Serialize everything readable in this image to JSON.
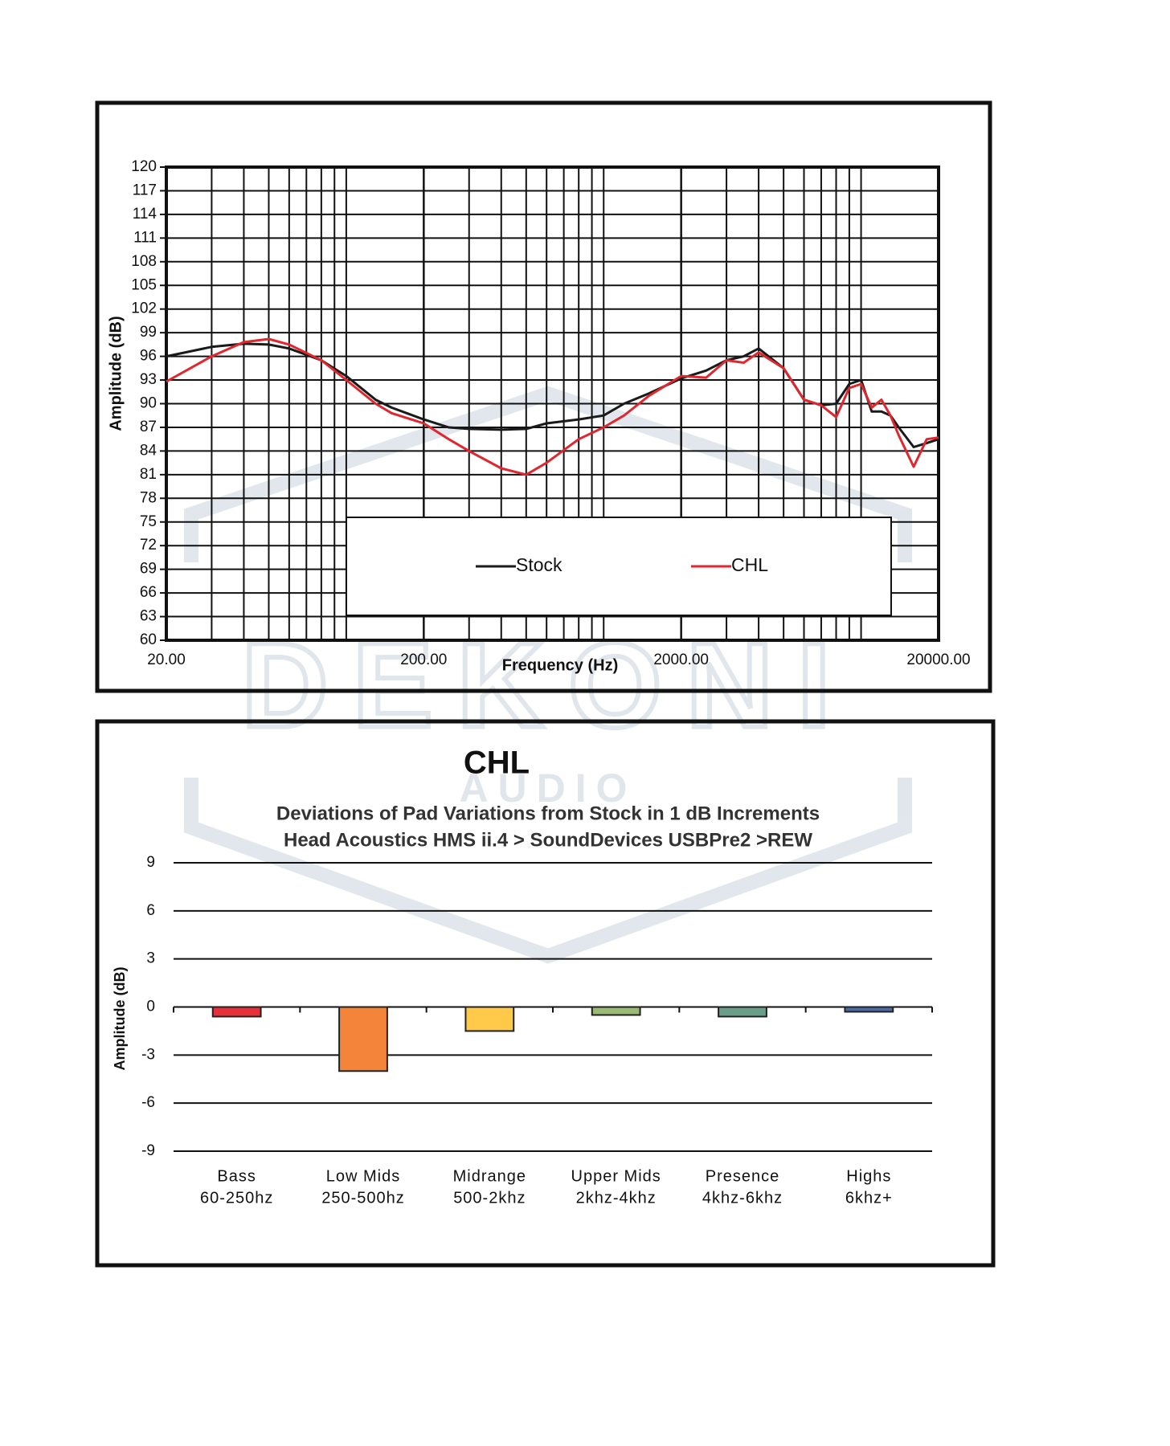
{
  "watermark": [
    "DEKONI",
    "AUDIO"
  ],
  "chart_data": [
    {
      "type": "line",
      "ylabel": "Amplitude (dB)",
      "xlabel": "Frequency (Hz)",
      "log_x": true,
      "grid": true,
      "xlim": [
        20,
        20000
      ],
      "ylim": [
        60,
        120
      ],
      "xticks": [
        {
          "value": 20,
          "label": "20.00"
        },
        {
          "value": 200,
          "label": "200.00"
        },
        {
          "value": 2000,
          "label": "2000.00"
        },
        {
          "value": 20000,
          "label": "20000.00"
        }
      ],
      "minor_xticks": [
        30,
        40,
        50,
        60,
        70,
        80,
        90,
        100,
        300,
        400,
        500,
        600,
        700,
        800,
        900,
        1000,
        3000,
        4000,
        5000,
        6000,
        7000,
        8000,
        9000,
        10000
      ],
      "yticks": [
        60,
        63,
        66,
        69,
        72,
        75,
        78,
        81,
        84,
        87,
        90,
        93,
        96,
        99,
        102,
        105,
        108,
        111,
        114,
        117,
        120
      ],
      "x": [
        20,
        30,
        40,
        50,
        60,
        80,
        100,
        130,
        150,
        200,
        250,
        300,
        400,
        500,
        600,
        800,
        1000,
        1200,
        1500,
        2000,
        2500,
        3000,
        3500,
        4000,
        5000,
        6000,
        7000,
        8000,
        9000,
        10000,
        11000,
        12000,
        13000,
        14000,
        16000,
        18000,
        20000
      ],
      "series": [
        {
          "name": "Stock",
          "color": "#1a1a1a",
          "values": [
            96,
            97.2,
            97.6,
            97.5,
            97,
            95.5,
            93.5,
            90.5,
            89.5,
            88,
            87,
            86.8,
            86.7,
            86.8,
            87.5,
            88,
            88.5,
            90,
            91.3,
            93.2,
            94.2,
            95.5,
            96,
            97,
            94.5,
            90.5,
            89.8,
            90,
            92.5,
            93,
            89,
            89,
            88.5,
            87,
            84.5,
            85,
            85.5
          ]
        },
        {
          "name": "CHL",
          "color": "#e0262e",
          "values": [
            92.8,
            96,
            97.8,
            98.2,
            97.5,
            95.5,
            93,
            90,
            88.8,
            87.5,
            85.5,
            84,
            81.8,
            81,
            82.5,
            85.5,
            87,
            88.5,
            91,
            93.5,
            93.3,
            95.5,
            95.2,
            96.5,
            94.5,
            90.5,
            89.8,
            88.3,
            92,
            92.5,
            89.5,
            90.5,
            88.5,
            86,
            82,
            85.5,
            85.7
          ]
        }
      ]
    },
    {
      "type": "bar",
      "title": "CHL",
      "subtitle": [
        "Deviations of Pad Variations from Stock in 1 dB Increments",
        "Head Acoustics HMS ii.4 > SoundDevices USBPre2 >REW"
      ],
      "ylabel": "Amplitude (dB)",
      "ylim": [
        -9,
        9
      ],
      "yticks": [
        -9,
        -6,
        -3,
        0,
        3,
        6,
        9
      ],
      "grid": true,
      "categories": [
        [
          "Bass",
          "60-250hz"
        ],
        [
          "Low Mids",
          "250-500hz"
        ],
        [
          "Midrange",
          "500-2khz"
        ],
        [
          "Upper Mids",
          "2khz-4khz"
        ],
        [
          "Presence",
          "4khz-6khz"
        ],
        [
          "Highs",
          "6khz+"
        ]
      ],
      "values": [
        -0.6,
        -4,
        -1.5,
        -0.5,
        -0.6,
        -0.3
      ],
      "colors": [
        "#e8303a",
        "#f4843a",
        "#ffc94a",
        "#9bbb75",
        "#6a9e8a",
        "#4a6aa8"
      ]
    }
  ]
}
